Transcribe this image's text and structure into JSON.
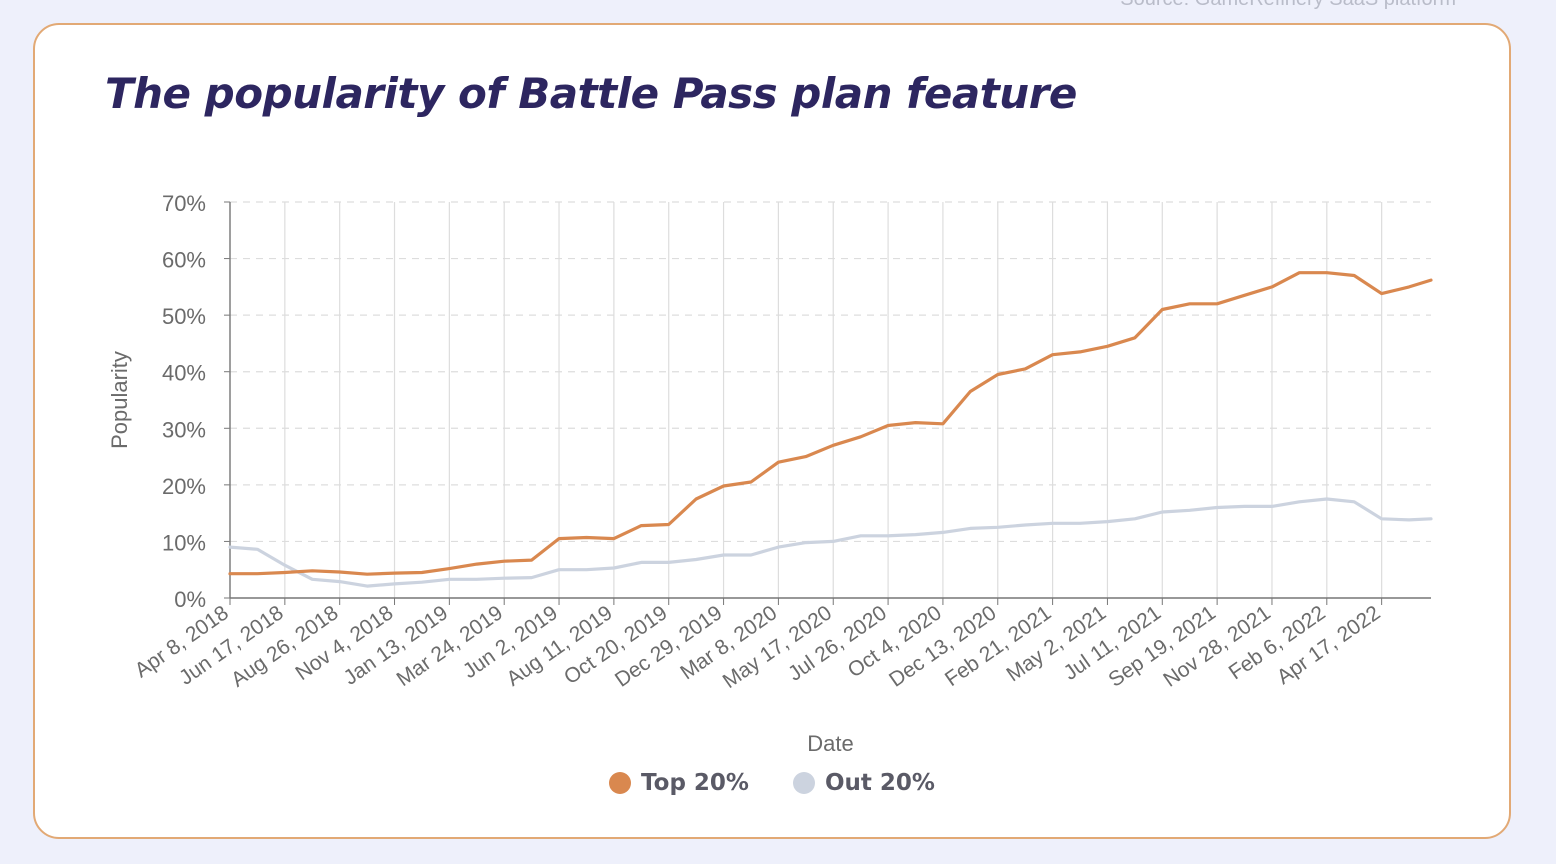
{
  "source": "Source: GameRefinery SaaS platform",
  "title": "The popularity of Battle Pass plan feature",
  "colors": {
    "top": "#d9884f",
    "out": "#ccd3df",
    "grid": "#dddddd",
    "axis": "#777777",
    "text": "#6b6b6b",
    "title": "#2d2660",
    "border": "#e2a975"
  },
  "legend": [
    {
      "label": "Top 20%",
      "color": "#d9884f"
    },
    {
      "label": "Out 20%",
      "color": "#ccd3df"
    }
  ],
  "chart_data": {
    "type": "line",
    "title": "The popularity of Battle Pass plan feature",
    "xlabel": "Date",
    "ylabel": "Popularity",
    "ylim": [
      0,
      70
    ],
    "yticks": [
      "0%",
      "10%",
      "20%",
      "30%",
      "40%",
      "50%",
      "60%",
      "70%"
    ],
    "x_start": "Apr 8, 2018",
    "x_end": "Jun 19, 2022",
    "categories": [
      "Apr 8, 2018",
      "Jun 17, 2018",
      "Aug 26, 2018",
      "Nov 4, 2018",
      "Jan 13, 2019",
      "Mar 24, 2019",
      "Jun 2, 2019",
      "Aug 11, 2019",
      "Oct 20, 2019",
      "Dec 29, 2019",
      "Mar 8, 2020",
      "May 17, 2020",
      "Jul 26, 2020",
      "Oct 4, 2020",
      "Dec 13, 2020",
      "Feb 21, 2021",
      "May 2, 2021",
      "Jul 11, 2021",
      "Sep 19, 2021",
      "Nov 28, 2021",
      "Feb 6, 2022",
      "Apr 17, 2022"
    ],
    "grid": true,
    "legend_position": "bottom-center",
    "series": [
      {
        "name": "Top 20%",
        "color": "#d9884f",
        "points": [
          [
            "Apr 8, 2018",
            4.3
          ],
          [
            "May 13, 2018",
            4.3
          ],
          [
            "Jun 17, 2018",
            4.5
          ],
          [
            "Jul 22, 2018",
            4.8
          ],
          [
            "Aug 26, 2018",
            4.6
          ],
          [
            "Sep 30, 2018",
            4.2
          ],
          [
            "Nov 4, 2018",
            4.4
          ],
          [
            "Dec 9, 2018",
            4.5
          ],
          [
            "Jan 13, 2019",
            5.2
          ],
          [
            "Feb 17, 2019",
            6.0
          ],
          [
            "Mar 24, 2019",
            6.5
          ],
          [
            "Apr 28, 2019",
            6.7
          ],
          [
            "Jun 2, 2019",
            10.5
          ],
          [
            "Jul 7, 2019",
            10.7
          ],
          [
            "Aug 11, 2019",
            10.5
          ],
          [
            "Sep 15, 2019",
            12.8
          ],
          [
            "Oct 20, 2019",
            13.0
          ],
          [
            "Nov 24, 2019",
            17.5
          ],
          [
            "Dec 29, 2019",
            19.8
          ],
          [
            "Feb 2, 2020",
            20.5
          ],
          [
            "Mar 8, 2020",
            24.0
          ],
          [
            "Apr 12, 2020",
            25.0
          ],
          [
            "May 17, 2020",
            27.0
          ],
          [
            "Jun 21, 2020",
            28.5
          ],
          [
            "Jul 26, 2020",
            30.5
          ],
          [
            "Aug 30, 2020",
            31.0
          ],
          [
            "Oct 4, 2020",
            30.8
          ],
          [
            "Nov 8, 2020",
            36.5
          ],
          [
            "Dec 13, 2020",
            39.5
          ],
          [
            "Jan 17, 2021",
            40.5
          ],
          [
            "Feb 21, 2021",
            43.0
          ],
          [
            "Mar 28, 2021",
            43.5
          ],
          [
            "May 2, 2021",
            44.5
          ],
          [
            "Jun 6, 2021",
            46.0
          ],
          [
            "Jul 11, 2021",
            51.0
          ],
          [
            "Aug 15, 2021",
            52.0
          ],
          [
            "Sep 19, 2021",
            52.0
          ],
          [
            "Oct 24, 2021",
            53.5
          ],
          [
            "Nov 28, 2021",
            55.0
          ],
          [
            "Jan 2, 2022",
            57.5
          ],
          [
            "Feb 6, 2022",
            57.5
          ],
          [
            "Mar 13, 2022",
            57.0
          ],
          [
            "Apr 17, 2022",
            53.8
          ],
          [
            "May 22, 2022",
            55.0
          ],
          [
            "Jun 19, 2022",
            56.2
          ]
        ]
      },
      {
        "name": "Out 20%",
        "color": "#ccd3df",
        "points": [
          [
            "Apr 8, 2018",
            9.0
          ],
          [
            "May 13, 2018",
            8.6
          ],
          [
            "Jun 17, 2018",
            5.8
          ],
          [
            "Jul 22, 2018",
            3.3
          ],
          [
            "Aug 26, 2018",
            2.9
          ],
          [
            "Sep 30, 2018",
            2.1
          ],
          [
            "Nov 4, 2018",
            2.5
          ],
          [
            "Dec 9, 2018",
            2.8
          ],
          [
            "Jan 13, 2019",
            3.3
          ],
          [
            "Feb 17, 2019",
            3.3
          ],
          [
            "Mar 24, 2019",
            3.5
          ],
          [
            "Apr 28, 2019",
            3.6
          ],
          [
            "Jun 2, 2019",
            5.0
          ],
          [
            "Jul 7, 2019",
            5.0
          ],
          [
            "Aug 11, 2019",
            5.3
          ],
          [
            "Sep 15, 2019",
            6.3
          ],
          [
            "Oct 20, 2019",
            6.3
          ],
          [
            "Nov 24, 2019",
            6.8
          ],
          [
            "Dec 29, 2019",
            7.6
          ],
          [
            "Feb 2, 2020",
            7.6
          ],
          [
            "Mar 8, 2020",
            9.0
          ],
          [
            "Apr 12, 2020",
            9.8
          ],
          [
            "May 17, 2020",
            10.0
          ],
          [
            "Jun 21, 2020",
            11.0
          ],
          [
            "Jul 26, 2020",
            11.0
          ],
          [
            "Aug 30, 2020",
            11.2
          ],
          [
            "Oct 4, 2020",
            11.6
          ],
          [
            "Nov 8, 2020",
            12.3
          ],
          [
            "Dec 13, 2020",
            12.5
          ],
          [
            "Jan 17, 2021",
            12.9
          ],
          [
            "Feb 21, 2021",
            13.2
          ],
          [
            "Mar 28, 2021",
            13.2
          ],
          [
            "May 2, 2021",
            13.5
          ],
          [
            "Jun 6, 2021",
            14.0
          ],
          [
            "Jul 11, 2021",
            15.2
          ],
          [
            "Aug 15, 2021",
            15.5
          ],
          [
            "Sep 19, 2021",
            16.0
          ],
          [
            "Oct 24, 2021",
            16.2
          ],
          [
            "Nov 28, 2021",
            16.2
          ],
          [
            "Jan 2, 2022",
            17.0
          ],
          [
            "Feb 6, 2022",
            17.5
          ],
          [
            "Mar 13, 2022",
            17.0
          ],
          [
            "Apr 17, 2022",
            14.0
          ],
          [
            "May 22, 2022",
            13.8
          ],
          [
            "Jun 19, 2022",
            14.0
          ]
        ]
      }
    ]
  }
}
